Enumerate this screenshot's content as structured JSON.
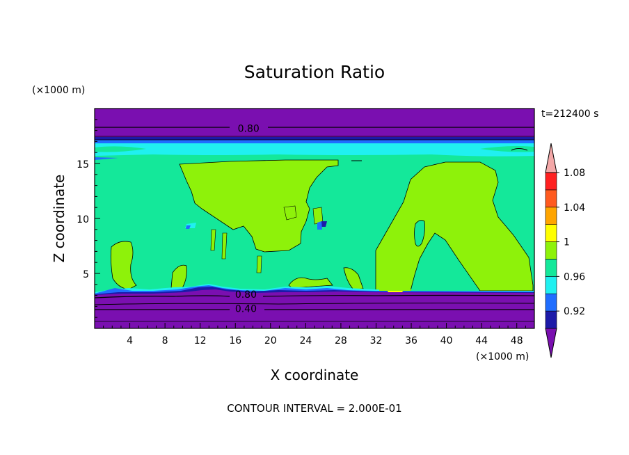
{
  "chart_data": {
    "type": "heatmap",
    "subtype": "filled-contour",
    "title": "Saturation Ratio",
    "time_label": "t=212400 s",
    "xlabel": "X coordinate",
    "ylabel": "Z coordinate",
    "x_unit": "(×1000 m)",
    "y_unit": "(×1000 m)",
    "xlim": [
      0,
      50
    ],
    "ylim": [
      0,
      20
    ],
    "x_ticks": [
      4,
      8,
      12,
      16,
      20,
      24,
      28,
      32,
      36,
      40,
      44,
      48
    ],
    "y_ticks": [
      5,
      10,
      15
    ],
    "footer": "CONTOUR INTERVAL = 2.000E-01",
    "contour_labels": [
      {
        "text": "0.80",
        "x": 17.5,
        "z": 18.2
      },
      {
        "text": "0.80",
        "x": 17.2,
        "z": 3.1
      },
      {
        "text": "0.40",
        "x": 17.2,
        "z": 1.8
      }
    ],
    "colorbar": {
      "labels": [
        "1.08",
        "1.04",
        "1",
        "0.96",
        "0.92"
      ],
      "colors": [
        "#7a0fb0",
        "#1c1aa8",
        "#1f6dff",
        "#20f0f0",
        "#14e89a",
        "#8ef20a",
        "#ffff00",
        "#ffa500",
        "#ff5a1f",
        "#ff2020",
        "#f4a8a8"
      ],
      "bounds": [
        0.9,
        0.92,
        0.94,
        0.96,
        0.98,
        1.0,
        1.02,
        1.04,
        1.06,
        1.08,
        1.1
      ]
    }
  }
}
